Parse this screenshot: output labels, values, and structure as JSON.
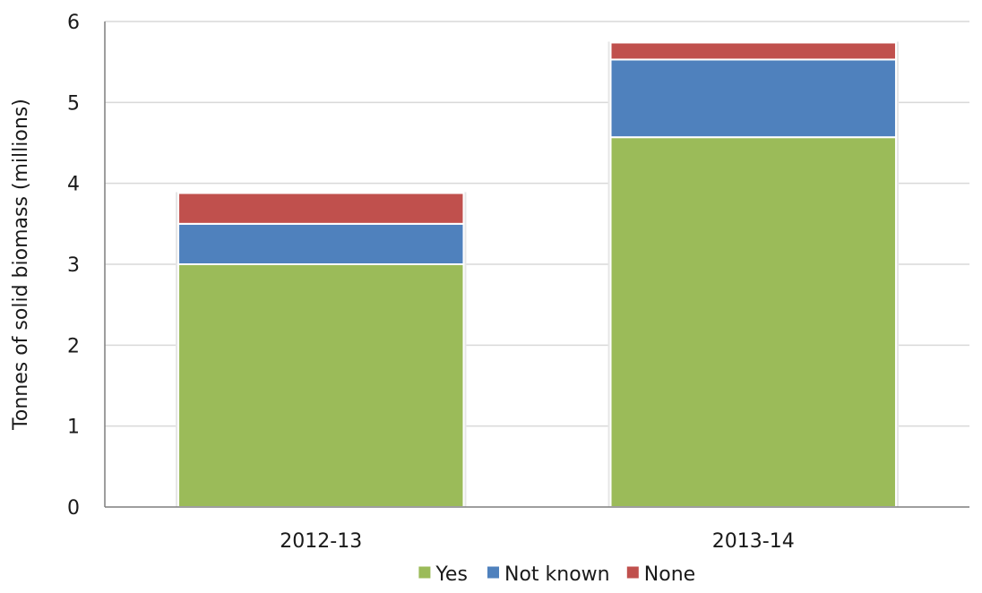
{
  "chart_data": {
    "type": "bar",
    "stacked": true,
    "title": "",
    "xlabel": "",
    "ylabel": "Tonnes of solid biomass (millions)",
    "ylim": [
      0,
      6
    ],
    "yticks": [
      "0",
      "1",
      "2",
      "3",
      "4",
      "5",
      "6"
    ],
    "grid": true,
    "legend_position": "bottom",
    "categories": [
      "2012-13",
      "2013-14"
    ],
    "series": [
      {
        "name": "Yes",
        "color": "#9BBB59",
        "values": [
          3.0,
          4.57
        ]
      },
      {
        "name": "Not known",
        "color": "#4F81BD",
        "values": [
          0.5,
          0.96
        ]
      },
      {
        "name": "None",
        "color": "#C0504D",
        "values": [
          0.38,
          0.21
        ]
      }
    ]
  }
}
